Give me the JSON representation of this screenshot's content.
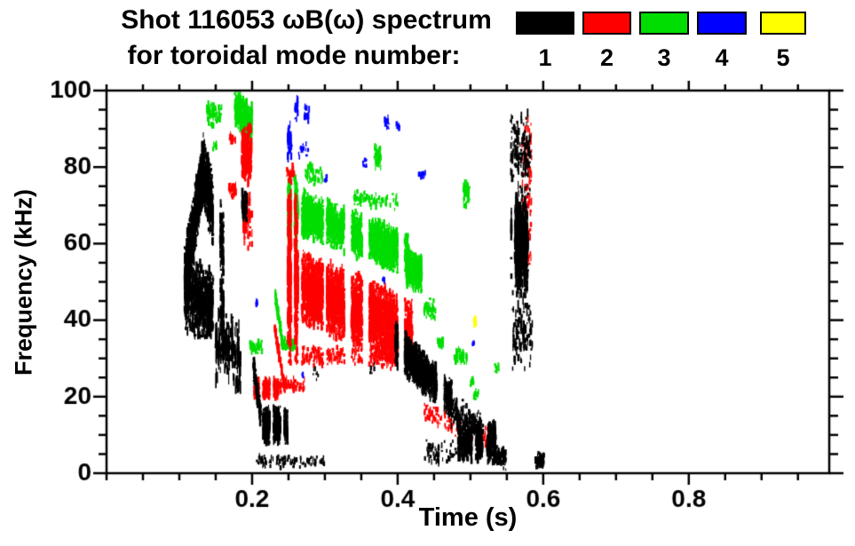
{
  "title": {
    "line1": "Shot 116053 ωB(ω) spectrum",
    "line2": "for toroidal mode number:"
  },
  "legend": {
    "items": [
      {
        "label": "1",
        "color": "#000000"
      },
      {
        "label": "2",
        "color": "#ff0000"
      },
      {
        "label": "3",
        "color": "#00dd00"
      },
      {
        "label": "4",
        "color": "#0000ff"
      },
      {
        "label": "5",
        "color": "#ffff00"
      }
    ]
  },
  "axes": {
    "x": {
      "label": "Time (s)",
      "range": [
        0,
        0.993
      ],
      "minor_step": 0.05,
      "major_ticks": [
        {
          "v": 0.2,
          "label": "0.2"
        },
        {
          "v": 0.4,
          "label": "0.4"
        },
        {
          "v": 0.6,
          "label": "0.6"
        },
        {
          "v": 0.8,
          "label": "0.8"
        }
      ]
    },
    "y": {
      "label": "Frequency (kHz)",
      "range": [
        0,
        100
      ],
      "minor_step": 5,
      "major_ticks": [
        {
          "v": 0,
          "label": "0"
        },
        {
          "v": 20,
          "label": "20"
        },
        {
          "v": 40,
          "label": "40"
        },
        {
          "v": 60,
          "label": "60"
        },
        {
          "v": 80,
          "label": "80"
        },
        {
          "v": 100,
          "label": "100"
        }
      ]
    }
  },
  "chart_data": {
    "type": "scatter",
    "title": "Shot 116053 ωB(ω) spectrum for toroidal mode number: 1 2 3 4 5",
    "xlabel": "Time (s)",
    "ylabel": "Frequency (kHz)",
    "xlim": [
      0,
      0.993
    ],
    "ylim": [
      0,
      100
    ],
    "legend_position": "top-right",
    "grid": false,
    "segment_format": [
      "t_start_s",
      "t_end_s",
      "f_center_start_kHz",
      "f_center_end_kHz",
      "f_spread_kHz",
      "point_count",
      "max_dash_px"
    ],
    "series": [
      {
        "name": "mode 1",
        "mode": 1,
        "color": "#000000",
        "segments": [
          [
            0.106,
            0.134,
            50,
            80,
            8,
            900,
            8
          ],
          [
            0.131,
            0.17,
            80,
            52,
            9,
            900,
            8
          ],
          [
            0.107,
            0.172,
            47,
            41,
            9,
            1100,
            9
          ],
          [
            0.15,
            0.184,
            34,
            30,
            9,
            160,
            16
          ],
          [
            0.186,
            0.193,
            70,
            70,
            4,
            45,
            10
          ],
          [
            0.202,
            0.212,
            28,
            15,
            3,
            130,
            6
          ],
          [
            0.211,
            0.249,
            12.5,
            12.5,
            4.5,
            750,
            7
          ],
          [
            0.206,
            0.3,
            3,
            3,
            1.5,
            100,
            4
          ],
          [
            0.397,
            0.437,
            34,
            26,
            5,
            900,
            8
          ],
          [
            0.437,
            0.475,
            26,
            19,
            5,
            400,
            8
          ],
          [
            0.47,
            0.515,
            17,
            12,
            4,
            180,
            6
          ],
          [
            0.437,
            0.482,
            5.5,
            5,
            3,
            60,
            5
          ],
          [
            0.483,
            0.535,
            8,
            8.5,
            5,
            600,
            7
          ],
          [
            0.532,
            0.549,
            5,
            3.5,
            2.5,
            90,
            5
          ],
          [
            0.556,
            0.579,
            60,
            60,
            12,
            750,
            9
          ],
          [
            0.555,
            0.582,
            84,
            84,
            11,
            130,
            8
          ],
          [
            0.558,
            0.585,
            38,
            38,
            10,
            110,
            8
          ],
          [
            0.589,
            0.601,
            3.5,
            3.5,
            2,
            70,
            5
          ],
          [
            0.284,
            0.291,
            26,
            26,
            1.5,
            8,
            4
          ],
          [
            0.362,
            0.368,
            27,
            27,
            1.5,
            6,
            4
          ]
        ]
      },
      {
        "name": "mode 2",
        "mode": 2,
        "color": "#ff0000",
        "segments": [
          [
            0.168,
            0.178,
            74,
            74,
            2,
            28,
            6
          ],
          [
            0.169,
            0.177,
            87.5,
            87.5,
            1.5,
            16,
            5
          ],
          [
            0.186,
            0.199,
            83,
            83,
            7,
            240,
            9
          ],
          [
            0.188,
            0.2,
            66,
            66,
            8,
            70,
            8
          ],
          [
            0.203,
            0.236,
            22,
            22,
            2.5,
            380,
            6
          ],
          [
            0.236,
            0.272,
            23,
            23,
            2,
            70,
            5
          ],
          [
            0.231,
            0.245,
            38,
            22,
            1.5,
            100,
            6
          ],
          [
            0.249,
            0.262,
            52,
            52,
            20,
            800,
            10
          ],
          [
            0.255,
            0.42,
            50,
            36,
            9,
            4200,
            8
          ],
          [
            0.25,
            0.4,
            30.5,
            30,
            2.5,
            320,
            5
          ],
          [
            0.247,
            0.258,
            78,
            78,
            2.5,
            35,
            6
          ],
          [
            0.437,
            0.53,
            16,
            8.5,
            2.5,
            150,
            5
          ],
          [
            0.571,
            0.584,
            72,
            72,
            20,
            100,
            7
          ]
        ]
      },
      {
        "name": "mode 3",
        "mode": 3,
        "color": "#00dd00",
        "segments": [
          [
            0.138,
            0.158,
            94,
            94,
            3,
            55,
            8
          ],
          [
            0.146,
            0.151,
            85.5,
            85.5,
            1,
            7,
            5
          ],
          [
            0.176,
            0.2,
            96,
            91,
            4.5,
            300,
            9
          ],
          [
            0.197,
            0.214,
            33,
            33,
            1.8,
            45,
            5
          ],
          [
            0.232,
            0.242,
            46,
            34,
            1.5,
            90,
            6
          ],
          [
            0.241,
            0.259,
            33.5,
            33.5,
            1.5,
            70,
            5
          ],
          [
            0.249,
            0.262,
            68,
            68,
            8,
            550,
            9
          ],
          [
            0.255,
            0.415,
            69,
            57,
            5.5,
            2800,
            7
          ],
          [
            0.412,
            0.433,
            54,
            52,
            4.5,
            550,
            7
          ],
          [
            0.34,
            0.4,
            72,
            71,
            2,
            70,
            5
          ],
          [
            0.368,
            0.377,
            82.5,
            82.5,
            3,
            45,
            7
          ],
          [
            0.272,
            0.297,
            78,
            78,
            2.5,
            45,
            6
          ],
          [
            0.436,
            0.452,
            43,
            43,
            2.5,
            45,
            6
          ],
          [
            0.454,
            0.463,
            34,
            34,
            1.5,
            28,
            5
          ],
          [
            0.478,
            0.495,
            30.5,
            30.5,
            2,
            45,
            6
          ],
          [
            0.49,
            0.499,
            73,
            73,
            3,
            40,
            7
          ],
          [
            0.5,
            0.504,
            23.8,
            23.8,
            1.2,
            16,
            5
          ],
          [
            0.505,
            0.511,
            20.5,
            20.5,
            1.2,
            16,
            5
          ],
          [
            0.533,
            0.539,
            27.5,
            27.5,
            1,
            10,
            4
          ],
          [
            0.257,
            0.261,
            76.5,
            76.5,
            1,
            9,
            5
          ]
        ]
      },
      {
        "name": "mode 4",
        "mode": 4,
        "color": "#0000ff",
        "segments": [
          [
            0.249,
            0.254,
            86.5,
            86.5,
            4.5,
            45,
            8
          ],
          [
            0.259,
            0.263,
            95,
            95,
            3,
            14,
            6
          ],
          [
            0.272,
            0.279,
            94,
            94,
            3,
            16,
            6
          ],
          [
            0.264,
            0.277,
            84.5,
            84.5,
            2,
            16,
            5
          ],
          [
            0.299,
            0.303,
            76.8,
            76.8,
            1,
            7,
            4
          ],
          [
            0.351,
            0.357,
            81.3,
            81.3,
            1.2,
            9,
            5
          ],
          [
            0.382,
            0.389,
            91.4,
            91.4,
            1.5,
            14,
            6
          ],
          [
            0.398,
            0.403,
            90.4,
            90.4,
            1,
            9,
            5
          ],
          [
            0.378,
            0.382,
            51,
            51,
            1,
            6,
            4
          ],
          [
            0.429,
            0.438,
            78,
            78,
            1.3,
            12,
            5
          ],
          [
            0.502,
            0.505,
            33.7,
            33.7,
            1,
            7,
            4
          ],
          [
            0.204,
            0.207,
            44.5,
            44.5,
            1,
            6,
            4
          ],
          [
            0.267,
            0.27,
            25.5,
            25.5,
            0.8,
            5,
            3
          ]
        ]
      },
      {
        "name": "mode 5",
        "mode": 5,
        "color": "#ffff00",
        "segments": [
          [
            0.504,
            0.508,
            39.2,
            39.2,
            1.4,
            12,
            6
          ]
        ]
      }
    ]
  }
}
